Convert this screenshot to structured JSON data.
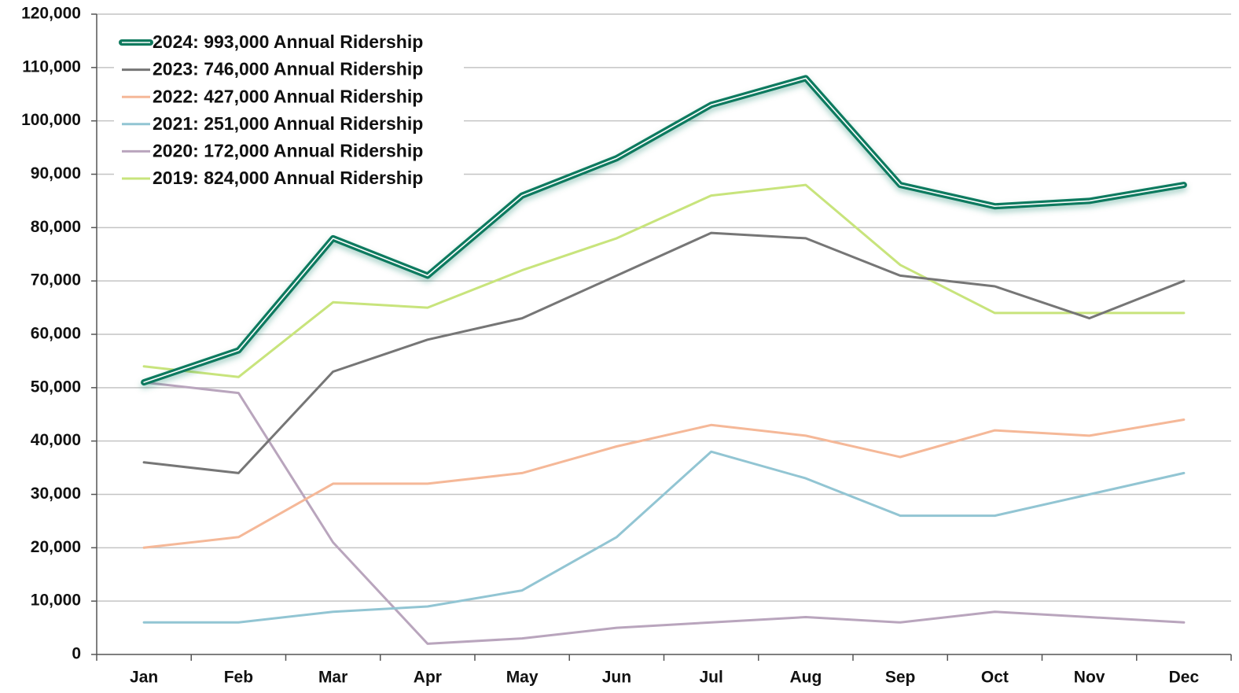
{
  "chart_data": {
    "type": "line",
    "categories": [
      "Jan",
      "Feb",
      "Mar",
      "Apr",
      "May",
      "Jun",
      "Jul",
      "Aug",
      "Sep",
      "Oct",
      "Nov",
      "Dec"
    ],
    "series": [
      {
        "name": "2024: 993,000 Annual Ridership",
        "color": "#0e7a5e",
        "values": [
          51000,
          57000,
          78000,
          71000,
          86000,
          93000,
          103000,
          108000,
          88000,
          84000,
          85000,
          88000
        ]
      },
      {
        "name": "2023: 746,000 Annual Ridership",
        "color": "#767676",
        "values": [
          36000,
          34000,
          53000,
          59000,
          63000,
          71000,
          79000,
          78000,
          71000,
          69000,
          63000,
          70000
        ]
      },
      {
        "name": "2022: 427,000 Annual Ridership",
        "color": "#f5b898",
        "values": [
          20000,
          22000,
          32000,
          32000,
          34000,
          39000,
          43000,
          41000,
          37000,
          42000,
          41000,
          44000
        ]
      },
      {
        "name": "2021: 251,000 Annual Ridership",
        "color": "#92c5d3",
        "values": [
          6000,
          6000,
          8000,
          9000,
          12000,
          22000,
          38000,
          33000,
          26000,
          26000,
          30000,
          34000
        ]
      },
      {
        "name": "2020: 172,000 Annual Ridership",
        "color": "#b9a5bd",
        "values": [
          51000,
          49000,
          21000,
          2000,
          3000,
          5000,
          6000,
          7000,
          6000,
          8000,
          7000,
          6000
        ]
      },
      {
        "name": "2019: 824,000 Annual Ridership",
        "color": "#c8e47c",
        "values": [
          54000,
          52000,
          66000,
          65000,
          72000,
          78000,
          86000,
          88000,
          73000,
          64000,
          64000,
          64000
        ]
      }
    ],
    "ylim": [
      0,
      120000
    ],
    "yticks": [
      0,
      {
        "value": 10000,
        "label": "10,000"
      },
      {
        "value": 20000,
        "label": "20,000"
      },
      {
        "value": 30000,
        "label": "30,000"
      },
      {
        "value": 40000,
        "label": "40,000"
      },
      {
        "value": 50000,
        "label": "50,000"
      },
      {
        "value": 60000,
        "label": "60,000"
      },
      {
        "value": 70000,
        "label": "70,000"
      },
      {
        "value": 80000,
        "label": "80,000"
      },
      {
        "value": 90000,
        "label": "90,000"
      },
      {
        "value": 100000,
        "label": "100,000"
      },
      {
        "value": 110000,
        "label": "110,000"
      },
      {
        "value": 120000,
        "label": "120,000"
      }
    ],
    "grid": true,
    "legend": "upper left"
  }
}
